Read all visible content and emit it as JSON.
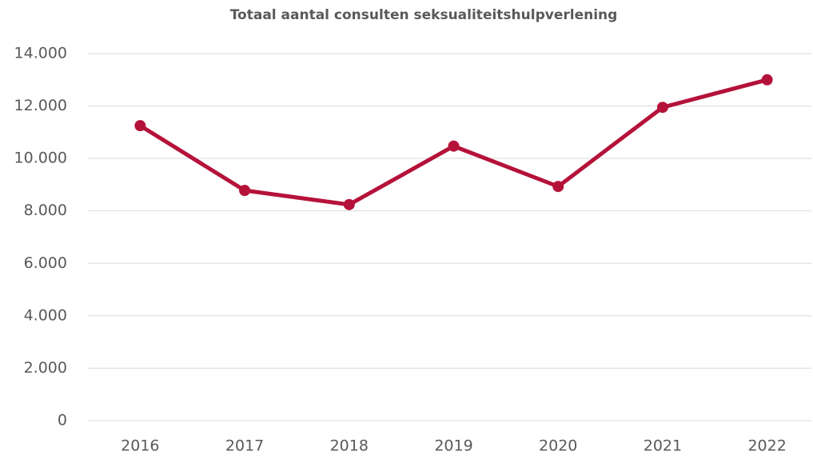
{
  "chart_data": {
    "type": "line",
    "title": "Totaal aantal consulten seksualiteitshulpverlening",
    "categories": [
      "2016",
      "2017",
      "2018",
      "2019",
      "2020",
      "2021",
      "2022"
    ],
    "series": [
      {
        "name": "Totaal aantal consulten",
        "color": "#b5123a",
        "values": [
          11250,
          8780,
          8240,
          10470,
          8930,
          11950,
          13000
        ]
      }
    ],
    "ylim": [
      0,
      14000
    ],
    "yticks": [
      0,
      {
        "value": 2000,
        "label": "2.000"
      },
      {
        "value": 4000,
        "label": "4.000"
      },
      {
        "value": 6000,
        "label": "6.000"
      },
      {
        "value": 8000,
        "label": "8.000"
      },
      {
        "value": 10000,
        "label": "10.000"
      },
      {
        "value": 12000,
        "label": "12.000"
      },
      {
        "value": 14000,
        "label": "14.000"
      }
    ],
    "grid": true
  }
}
